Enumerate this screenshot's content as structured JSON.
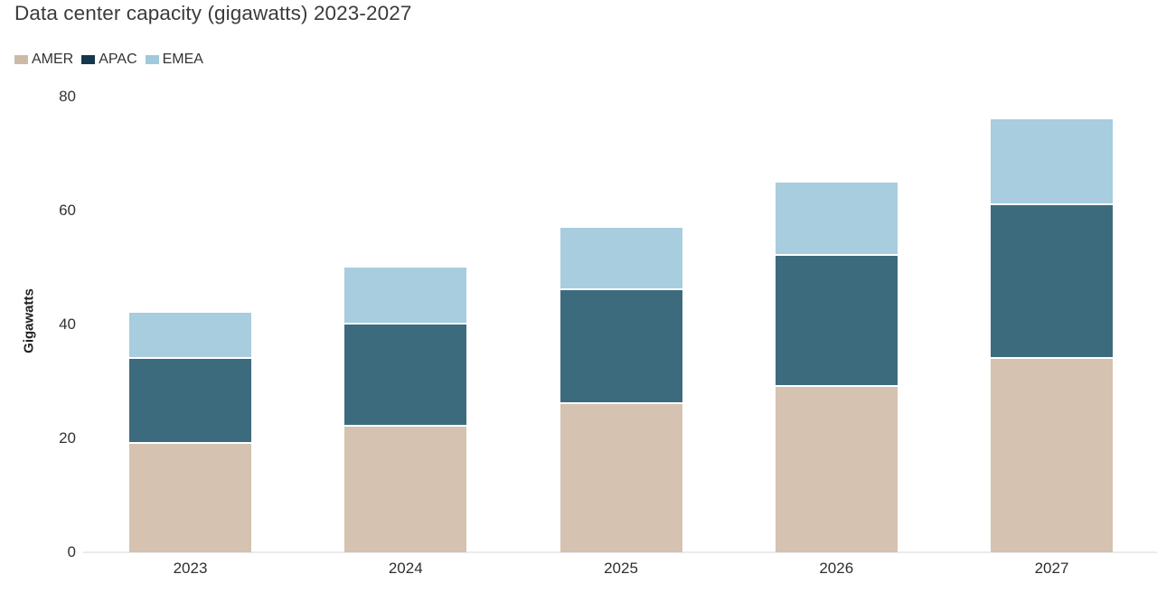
{
  "chart_data": {
    "type": "bar",
    "stacked": true,
    "title": "Data center capacity (gigawatts) 2023-2027",
    "ylabel": "Gigawatts",
    "xlabel": "",
    "categories": [
      "2023",
      "2024",
      "2025",
      "2026",
      "2027"
    ],
    "series": [
      {
        "name": "AMER",
        "color": "#d5c2b0",
        "legend_color": "#cdbaa6",
        "values": [
          19,
          22,
          26,
          29,
          34
        ]
      },
      {
        "name": "APAC",
        "color": "#3d6b7e",
        "legend_color": "#16384d",
        "values": [
          15,
          18,
          20,
          23,
          27
        ]
      },
      {
        "name": "EMEA",
        "color": "#a7cdde",
        "legend_color": "#9ecadc",
        "values": [
          8,
          10,
          11,
          13,
          15
        ]
      }
    ],
    "y_ticks": [
      0,
      20,
      40,
      60,
      80
    ],
    "ylim": [
      0,
      80
    ],
    "grid": false,
    "legend_position": "top-left",
    "axis_line_color": "#ebebeb",
    "text_color": "#333333",
    "background_color": "#ffffff"
  }
}
